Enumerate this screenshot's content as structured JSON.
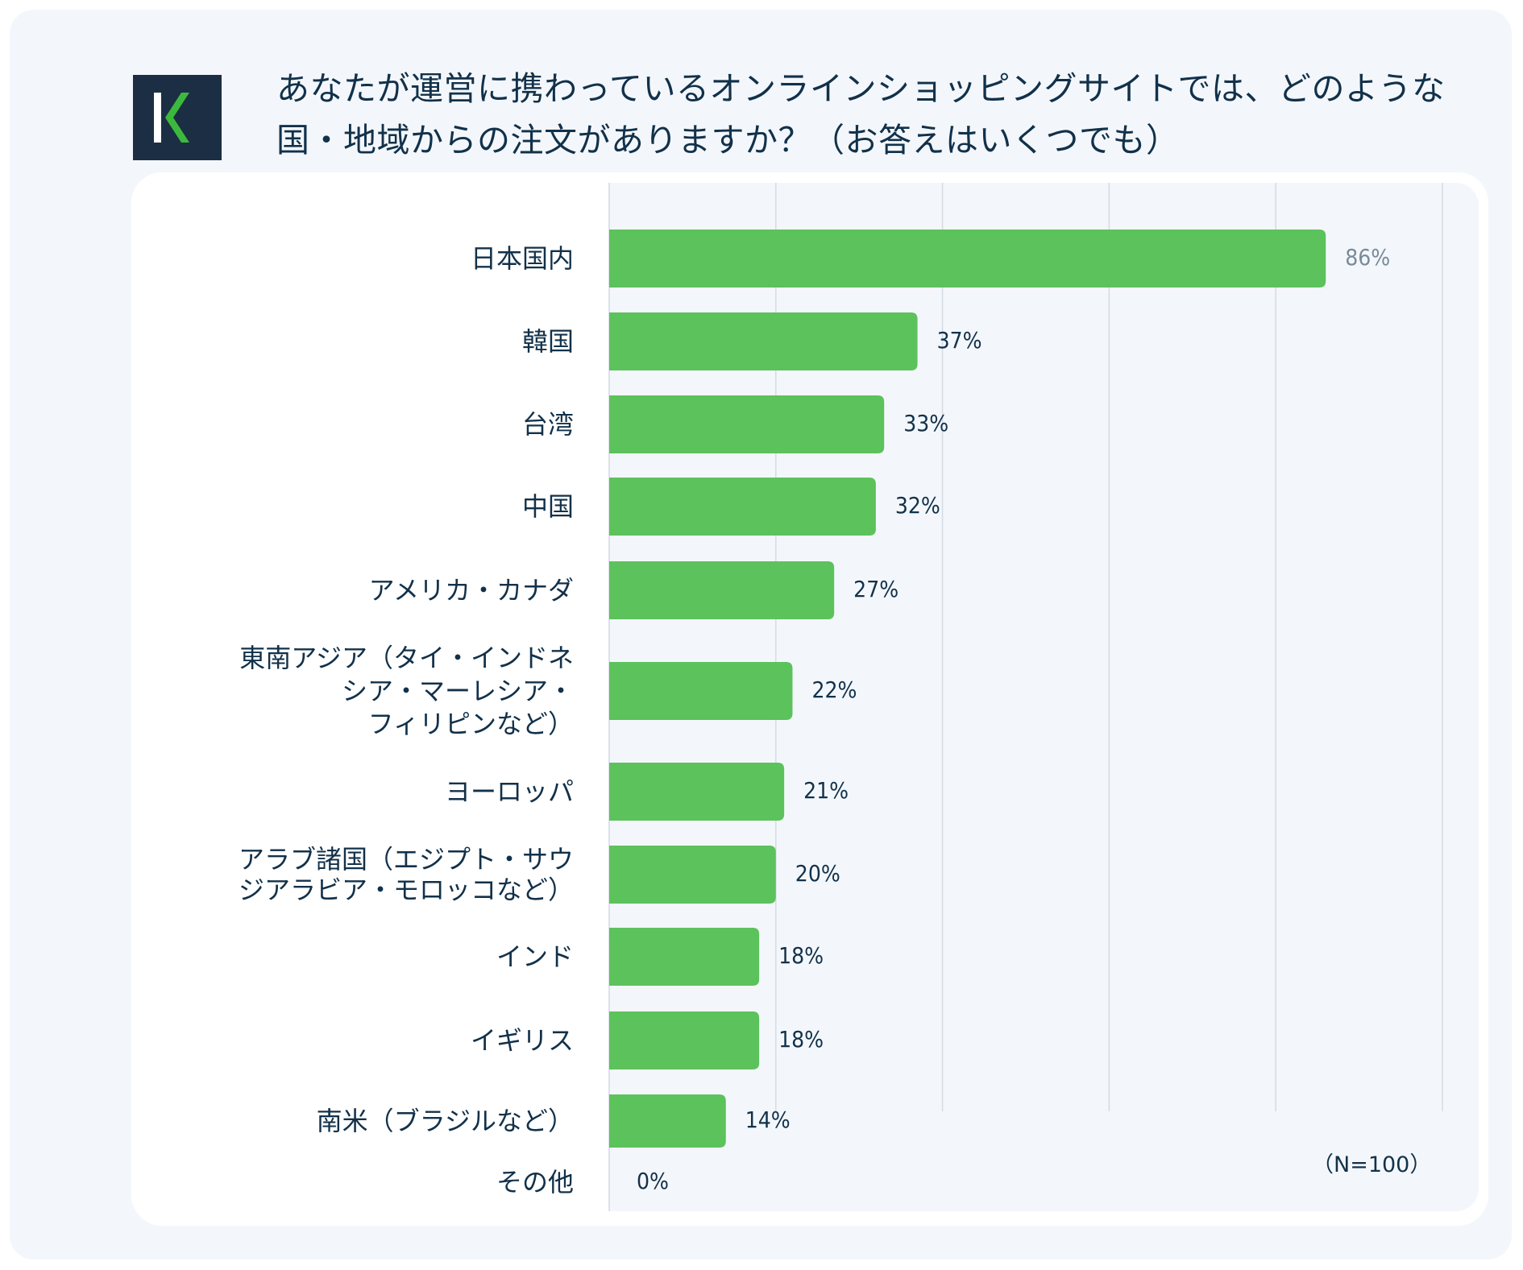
{
  "header": {
    "title": "あなたが運営に携わっているオンラインショッピングサイトでは、どのような国・地域からの注文がありますか？（お答えはいくつでも）",
    "logo_text": "K"
  },
  "chart_data": {
    "type": "bar",
    "orientation": "horizontal",
    "title": "あなたが運営に携わっているオンラインショッピングサイトでは、どのような国・地域からの注文がありますか？（お答えはいくつでも）",
    "categories": [
      [
        "日本国内"
      ],
      [
        "韓国"
      ],
      [
        "台湾"
      ],
      [
        "中国"
      ],
      [
        "アメリカ・カナダ"
      ],
      [
        "東南アジア（タイ・インドネ",
        "シア・マーレシア・",
        "フィリピンなど）"
      ],
      [
        "ヨーロッパ"
      ],
      [
        "アラブ諸国（エジプト・サウ",
        "ジアラビア・モロッコなど）"
      ],
      [
        "インド"
      ],
      [
        "イギリス"
      ],
      [
        "南米（ブラジルなど）"
      ],
      [
        "その他"
      ]
    ],
    "values": [
      86,
      37,
      33,
      32,
      27,
      22,
      21,
      20,
      18,
      18,
      14,
      0
    ],
    "value_labels": [
      "86%",
      "37%",
      "33%",
      "32%",
      "27%",
      "22%",
      "21%",
      "20%",
      "18%",
      "18%",
      "14%",
      "0%"
    ],
    "xlim": [
      0,
      100
    ],
    "grid": true,
    "gridline_values": [
      0,
      20,
      40,
      60,
      80,
      100
    ],
    "note": "（N=100）",
    "colors": {
      "bar": "#5cc25c",
      "text": "#12314a",
      "top_value_label": "#7a8a99",
      "grid": "#d3dbe3",
      "background": "#f3f7fb",
      "logo_bg": "#1b2e44",
      "logo_accent": "#3cb93c"
    }
  }
}
